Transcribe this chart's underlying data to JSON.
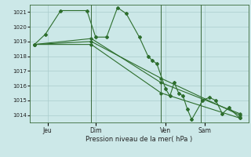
{
  "background_color": "#cce8e8",
  "grid_color": "#aacccc",
  "line_color": "#2d6e2d",
  "title": "Pression niveau de la mer( hPa )",
  "ylim": [
    1013.5,
    1021.5
  ],
  "yticks": [
    1014,
    1015,
    1016,
    1017,
    1018,
    1019,
    1020,
    1021
  ],
  "day_labels": [
    "Jeu",
    "Dim",
    "Ven",
    "Sam"
  ],
  "day_positions": [
    0.08,
    0.3,
    0.62,
    0.8
  ],
  "vline_positions": [
    0.28,
    0.6,
    0.78
  ],
  "series0_x": [
    0.02,
    0.07,
    0.14,
    0.26,
    0.3,
    0.35,
    0.4,
    0.44,
    0.5,
    0.54,
    0.56,
    0.58,
    0.62,
    0.64,
    0.66,
    0.68,
    0.7,
    0.72,
    0.74,
    0.79,
    0.82,
    0.85,
    0.88,
    0.91,
    0.96
  ],
  "series0_y": [
    1018.8,
    1019.5,
    1021.1,
    1021.1,
    1019.3,
    1019.3,
    1021.3,
    1020.9,
    1019.3,
    1018.0,
    1017.7,
    1017.5,
    1015.8,
    1015.3,
    1016.2,
    1015.5,
    1015.3,
    1014.4,
    1013.7,
    1015.0,
    1015.2,
    1015.0,
    1014.1,
    1014.5,
    1013.8
  ],
  "series1_x": [
    0.02,
    0.28,
    0.6,
    0.96
  ],
  "series1_y": [
    1018.8,
    1019.2,
    1016.2,
    1014.1
  ],
  "series2_x": [
    0.02,
    0.28,
    0.6,
    0.96
  ],
  "series2_y": [
    1018.8,
    1019.0,
    1016.5,
    1014.0
  ],
  "series3_x": [
    0.02,
    0.28,
    0.6,
    0.96
  ],
  "series3_y": [
    1018.8,
    1018.8,
    1015.5,
    1013.8
  ]
}
